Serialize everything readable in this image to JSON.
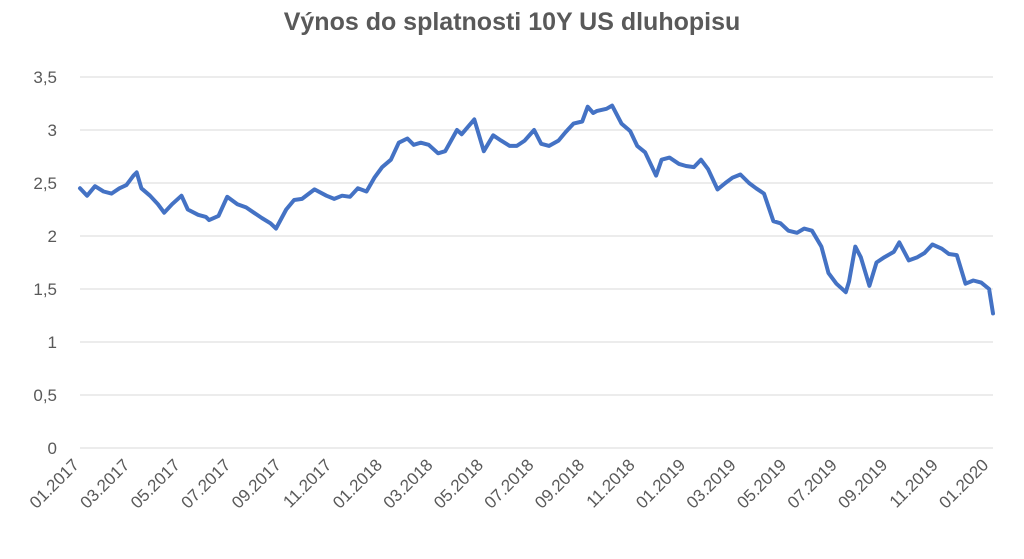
{
  "chart_data": {
    "type": "line",
    "title": "Výnos do splatnosti 10Y US dluhopisu",
    "xlabel": "",
    "ylabel": "",
    "ylim": [
      0,
      3.5
    ],
    "y_ticks": [
      "0",
      "0,5",
      "1",
      "1,5",
      "2",
      "2,5",
      "3",
      "3,5"
    ],
    "x_ticks": [
      "01.2017",
      "03.2017",
      "05.2017",
      "07.2017",
      "09.2017",
      "11.2017",
      "01.2018",
      "03.2018",
      "05.2018",
      "07.2018",
      "09.2018",
      "11.2018",
      "01.2019",
      "03.2019",
      "05.2019",
      "07.2019",
      "09.2019",
      "11.2019",
      "01.2020"
    ],
    "grid": true,
    "legend": "none",
    "color": "#4472c4",
    "series": [
      {
        "x": [
          "2017-01-01",
          "2017-01-10",
          "2017-01-20",
          "2017-01-31",
          "2017-02-10",
          "2017-02-20",
          "2017-03-01",
          "2017-03-10",
          "2017-03-14",
          "2017-03-20",
          "2017-03-31",
          "2017-04-10",
          "2017-04-18",
          "2017-04-28",
          "2017-05-10",
          "2017-05-18",
          "2017-05-31",
          "2017-06-10",
          "2017-06-14",
          "2017-06-26",
          "2017-07-07",
          "2017-07-20",
          "2017-07-31",
          "2017-08-10",
          "2017-08-20",
          "2017-08-31",
          "2017-09-07",
          "2017-09-20",
          "2017-09-30",
          "2017-10-10",
          "2017-10-26",
          "2017-11-10",
          "2017-11-20",
          "2017-11-30",
          "2017-12-10",
          "2017-12-20",
          "2017-12-31",
          "2018-01-10",
          "2018-01-20",
          "2018-01-31",
          "2018-02-10",
          "2018-02-21",
          "2018-03-01",
          "2018-03-10",
          "2018-03-20",
          "2018-04-01",
          "2018-04-10",
          "2018-04-25",
          "2018-05-01",
          "2018-05-17",
          "2018-05-29",
          "2018-06-10",
          "2018-06-20",
          "2018-07-01",
          "2018-07-10",
          "2018-07-20",
          "2018-08-01",
          "2018-08-10",
          "2018-08-20",
          "2018-09-01",
          "2018-09-10",
          "2018-09-20",
          "2018-10-01",
          "2018-10-08",
          "2018-10-15",
          "2018-10-20",
          "2018-11-01",
          "2018-11-08",
          "2018-11-20",
          "2018-12-01",
          "2018-12-10",
          "2018-12-20",
          "2019-01-03",
          "2019-01-10",
          "2019-01-20",
          "2019-02-01",
          "2019-02-10",
          "2019-02-20",
          "2019-03-01",
          "2019-03-10",
          "2019-03-22",
          "2019-04-01",
          "2019-04-10",
          "2019-04-20",
          "2019-05-01",
          "2019-05-10",
          "2019-05-20",
          "2019-06-01",
          "2019-06-10",
          "2019-06-20",
          "2019-07-01",
          "2019-07-10",
          "2019-07-20",
          "2019-08-01",
          "2019-08-10",
          "2019-08-20",
          "2019-09-01",
          "2019-09-05",
          "2019-09-13",
          "2019-09-20",
          "2019-10-01",
          "2019-10-10",
          "2019-10-20",
          "2019-11-01",
          "2019-11-08",
          "2019-11-20",
          "2019-12-01",
          "2019-12-10",
          "2019-12-20",
          "2020-01-01",
          "2020-01-10",
          "2020-01-20",
          "2020-01-31",
          "2020-02-10",
          "2020-02-20",
          "2020-03-01",
          "2020-03-06"
        ],
        "y": [
          2.45,
          2.38,
          2.47,
          2.42,
          2.4,
          2.45,
          2.48,
          2.57,
          2.6,
          2.45,
          2.38,
          2.3,
          2.22,
          2.3,
          2.38,
          2.25,
          2.2,
          2.18,
          2.15,
          2.19,
          2.37,
          2.3,
          2.27,
          2.22,
          2.17,
          2.12,
          2.07,
          2.25,
          2.34,
          2.35,
          2.44,
          2.38,
          2.35,
          2.38,
          2.37,
          2.45,
          2.42,
          2.55,
          2.65,
          2.72,
          2.88,
          2.92,
          2.86,
          2.88,
          2.86,
          2.78,
          2.8,
          3.0,
          2.96,
          3.1,
          2.8,
          2.95,
          2.9,
          2.85,
          2.85,
          2.9,
          3.0,
          2.87,
          2.85,
          2.9,
          2.98,
          3.06,
          3.08,
          3.22,
          3.16,
          3.18,
          3.2,
          3.23,
          3.06,
          2.99,
          2.85,
          2.79,
          2.57,
          2.72,
          2.74,
          2.68,
          2.66,
          2.65,
          2.72,
          2.63,
          2.44,
          2.5,
          2.55,
          2.58,
          2.5,
          2.45,
          2.4,
          2.14,
          2.12,
          2.05,
          2.03,
          2.07,
          2.05,
          1.9,
          1.65,
          1.55,
          1.47,
          1.57,
          1.9,
          1.8,
          1.53,
          1.75,
          1.8,
          1.85,
          1.94,
          1.77,
          1.8,
          1.84,
          1.92,
          1.88,
          1.83,
          1.82,
          1.55,
          1.58,
          1.56,
          1.5,
          1.27
        ]
      }
    ]
  }
}
